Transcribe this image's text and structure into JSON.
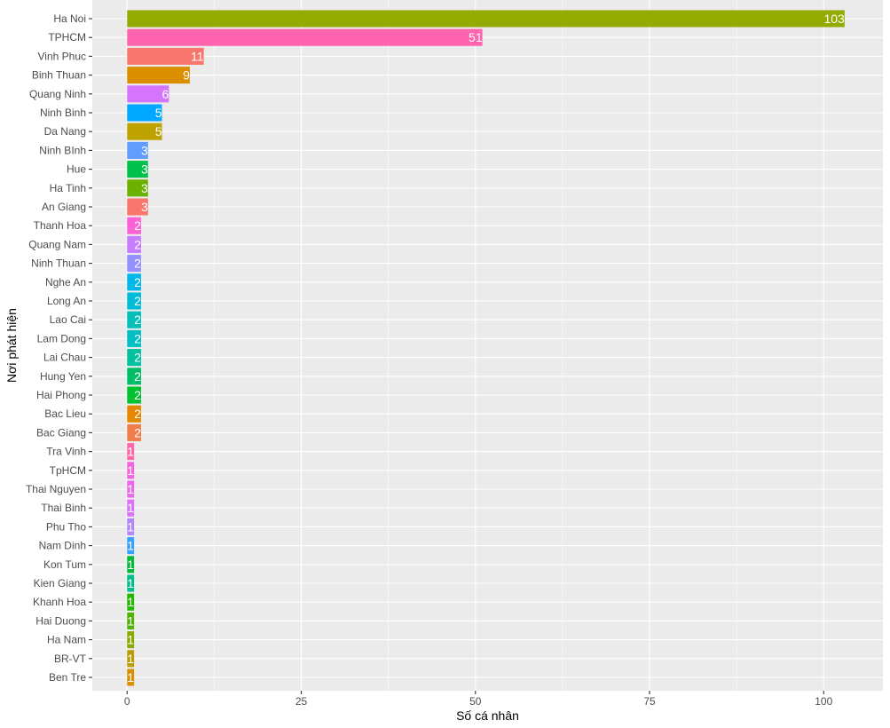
{
  "chart_data": {
    "type": "bar",
    "orientation": "horizontal",
    "xlabel": "Số cá nhân",
    "ylabel": "Nơi phát hiện",
    "xlim": [
      -5,
      108.5
    ],
    "xticks": [
      0,
      25,
      50,
      75,
      100
    ],
    "grid": true,
    "legend": "none",
    "panel_background": "#ebebeb",
    "grid_color": "#ffffff",
    "label_color": "#ffffff",
    "categories": [
      "Ha Noi",
      "TPHCM",
      "Vinh Phuc",
      "Binh Thuan",
      "Quang Ninh",
      "Ninh Binh",
      "Da Nang",
      "Ninh BInh",
      "Hue",
      "Ha Tinh",
      "An Giang",
      "Thanh Hoa",
      "Quang Nam",
      "Ninh Thuan",
      "Nghe An",
      "Long An",
      "Lao Cai",
      "Lam Dong",
      "Lai Chau",
      "Hung Yen",
      "Hai Phong",
      "Bac Lieu",
      "Bac Giang",
      "Tra Vinh",
      "TpHCM",
      "Thai Nguyen",
      "Thai Binh",
      "Phu Tho",
      "Nam Dinh",
      "Kon Tum",
      "Kien Giang",
      "Khanh Hoa",
      "Hai Duong",
      "Ha Nam",
      "BR-VT",
      "Ben Tre"
    ],
    "values": [
      103,
      51,
      11,
      9,
      6,
      5,
      5,
      3,
      3,
      3,
      3,
      2,
      2,
      2,
      2,
      2,
      2,
      2,
      2,
      2,
      2,
      2,
      2,
      1,
      1,
      1,
      1,
      1,
      1,
      1,
      1,
      1,
      1,
      1,
      1,
      1
    ],
    "colors": [
      "#93aa00",
      "#ff65ae",
      "#f8766d",
      "#db8e00",
      "#d575fe",
      "#00a9ff",
      "#bea200",
      "#619cff",
      "#00c14b",
      "#6bb100",
      "#f8766d",
      "#fc61d5",
      "#c77cff",
      "#9590ff",
      "#00b8e7",
      "#00bcd8",
      "#00c0b8",
      "#00bfc4",
      "#00c1a0",
      "#00be67",
      "#00c12f",
      "#e58700",
      "#f07e4d",
      "#ff66a8",
      "#f863df",
      "#ec69ef",
      "#de71fa",
      "#b385ff",
      "#35a2ff",
      "#00ba38",
      "#00c08b",
      "#25b800",
      "#4fb400",
      "#8aab00",
      "#bb9d00",
      "#d89000"
    ]
  }
}
